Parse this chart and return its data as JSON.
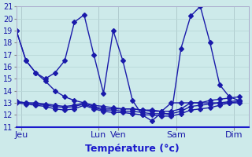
{
  "xlabel": "Température (°c)",
  "background_color": "#cdeaea",
  "grid_color": "#b8d8d8",
  "line_color": "#1a1aaa",
  "ylim": [
    11,
    21
  ],
  "yticks": [
    11,
    12,
    13,
    14,
    15,
    16,
    17,
    18,
    19,
    20,
    21
  ],
  "day_labels": [
    "Jeu",
    "Lun",
    "Ven",
    "Sam",
    "Dim"
  ],
  "day_x": [
    0.5,
    8.5,
    10.5,
    16.5,
    22.5
  ],
  "vline_x": [
    0.5,
    8.5,
    10.5,
    16.5,
    22.5
  ],
  "num_points": 24,
  "xlim": [
    0,
    24
  ],
  "series": [
    [
      19.0,
      16.5,
      15.5,
      14.8,
      14.0,
      13.5,
      13.2,
      13.0,
      12.8,
      12.7,
      12.6,
      12.5,
      12.5,
      12.4,
      12.4,
      12.3,
      13.0,
      13.0,
      13.0,
      13.0,
      13.0,
      13.0,
      13.0,
      13.0
    ],
    [
      19.0,
      16.5,
      15.5,
      15.0,
      15.5,
      16.5,
      19.7,
      20.3,
      17.0,
      13.8,
      19.0,
      16.5,
      13.2,
      12.0,
      11.5,
      12.2,
      12.0,
      17.5,
      20.2,
      21.0,
      18.0,
      14.5,
      13.5,
      13.2
    ],
    [
      13.1,
      13.0,
      13.0,
      12.9,
      12.8,
      12.7,
      12.8,
      13.0,
      12.7,
      12.5,
      12.5,
      12.5,
      12.5,
      12.4,
      12.3,
      12.3,
      12.3,
      12.5,
      13.0,
      13.0,
      13.2,
      13.3,
      13.4,
      13.5
    ],
    [
      13.1,
      13.0,
      12.9,
      12.8,
      12.7,
      12.6,
      12.7,
      12.9,
      12.6,
      12.4,
      12.4,
      12.3,
      12.3,
      12.2,
      12.1,
      12.1,
      12.1,
      12.3,
      12.7,
      12.8,
      12.9,
      13.0,
      13.1,
      13.2
    ],
    [
      13.0,
      12.9,
      12.8,
      12.7,
      12.5,
      12.4,
      12.5,
      12.8,
      12.5,
      12.3,
      12.2,
      12.2,
      12.1,
      12.0,
      12.0,
      11.9,
      11.9,
      12.1,
      12.4,
      12.5,
      12.6,
      12.8,
      13.0,
      13.1
    ]
  ],
  "marker": "D",
  "markersize": 3,
  "linewidth": 1.0,
  "label_fontsize": 8,
  "tick_fontsize": 7,
  "xlabel_color": "#1a1acc",
  "xlabel_fontsize": 9,
  "xlabel_bold": true,
  "spine_color": "#3333aa",
  "spine_bottom_color": "#1a1acc"
}
